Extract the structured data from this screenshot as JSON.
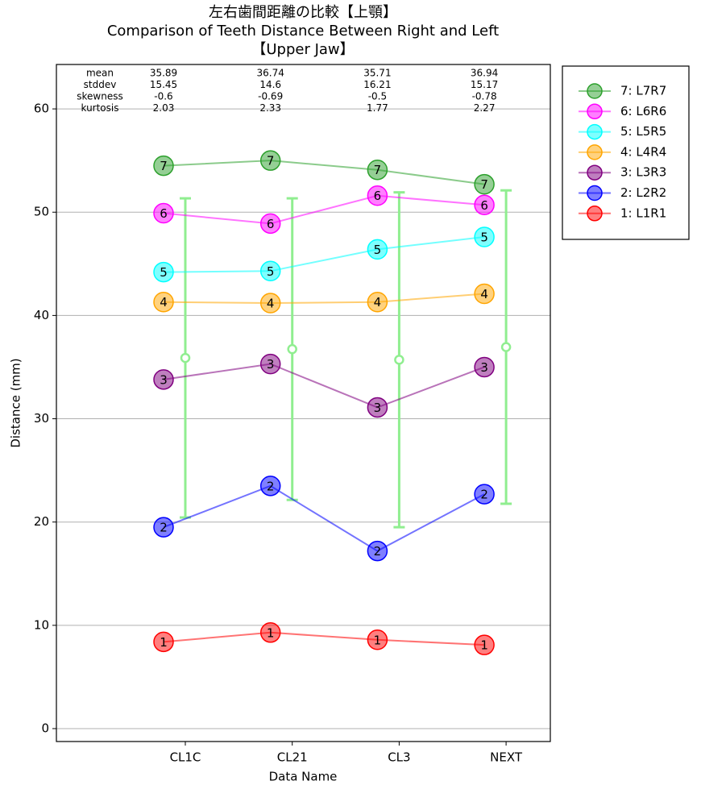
{
  "chart_data": {
    "type": "line",
    "title": [
      "左右歯間距離の比較【上顎】",
      "Comparison of Teeth Distance Between Right and Left",
      "【Upper Jaw】"
    ],
    "xlabel": "Data Name",
    "ylabel": "Distance (mm)",
    "categories": [
      "CL1C",
      "CL21",
      "CL3",
      "NEXT"
    ],
    "ylim": [
      -1.25,
      64.3
    ],
    "yticks": [
      0,
      10,
      20,
      30,
      40,
      50,
      60
    ],
    "grid": true,
    "legend": "outside-upper-right",
    "series": [
      {
        "name": "7: L7R7",
        "marker": "7",
        "color": "#2ca02c",
        "values": [
          54.5,
          55.0,
          54.1,
          52.7
        ]
      },
      {
        "name": "6: L6R6",
        "marker": "6",
        "color": "#ff00ff",
        "values": [
          49.9,
          48.9,
          51.6,
          50.7
        ]
      },
      {
        "name": "5: L5R5",
        "marker": "5",
        "color": "#00ffff",
        "values": [
          44.2,
          44.3,
          46.4,
          47.6
        ]
      },
      {
        "name": "4: L4R4",
        "marker": "4",
        "color": "#ffa500",
        "values": [
          41.3,
          41.2,
          41.3,
          42.1
        ]
      },
      {
        "name": "3: L3R3",
        "marker": "3",
        "color": "#800080",
        "values": [
          33.8,
          35.3,
          31.1,
          35.0
        ]
      },
      {
        "name": "2: L2R2",
        "marker": "2",
        "color": "#0000ff",
        "values": [
          19.5,
          23.5,
          17.2,
          22.7
        ]
      },
      {
        "name": "1: L1R1",
        "marker": "1",
        "color": "#ff0000",
        "values": [
          8.4,
          9.3,
          8.6,
          8.1
        ]
      }
    ],
    "errorbar_color": "#90ee90",
    "stats": [
      {
        "name": "mean",
        "values": [
          35.89,
          36.74,
          35.71,
          36.94
        ]
      },
      {
        "name": "stddev",
        "values": [
          15.45,
          14.6,
          16.21,
          15.17
        ]
      },
      {
        "name": "skewness",
        "values": [
          -0.6,
          -0.69,
          -0.5,
          -0.78
        ]
      },
      {
        "name": "kurtosis",
        "values": [
          2.03,
          2.33,
          1.77,
          2.27
        ]
      }
    ]
  }
}
